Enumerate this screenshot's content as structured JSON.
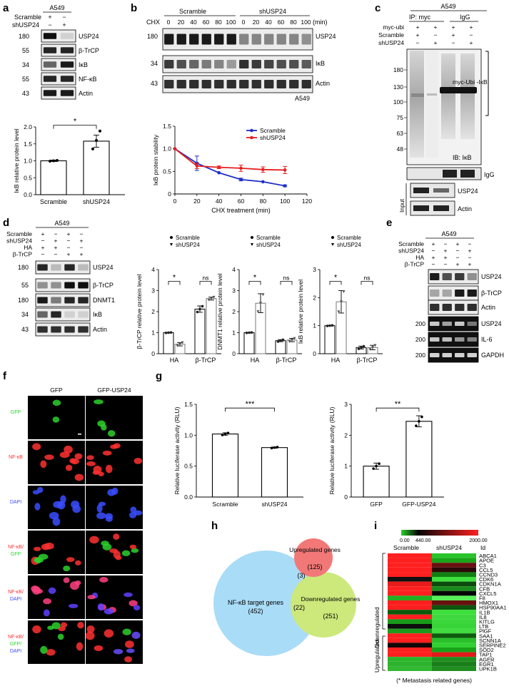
{
  "panel_letters": {
    "a": "a",
    "b": "b",
    "c": "c",
    "d": "d",
    "e": "e",
    "f": "f",
    "g": "g",
    "h": "h",
    "i": "i"
  },
  "a": {
    "cell_line": "A549",
    "lanes": [
      "Scramble",
      "shUSP24"
    ],
    "lane_marks": {
      "Scramble": [
        "+",
        "−"
      ],
      "shUSP24": [
        "−",
        "+"
      ]
    },
    "bands": [
      {
        "mw": "180",
        "label": "USP24"
      },
      {
        "mw": "55",
        "label": "β-TrCP"
      },
      {
        "mw": "34",
        "label": "IκB"
      },
      {
        "mw": "55",
        "label": "NF-κB"
      },
      {
        "mw": "43",
        "label": "Actin"
      }
    ],
    "star": "*"
  },
  "b": {
    "groups": [
      "Scramble",
      "shUSP24"
    ],
    "cond_label": "CHX",
    "unit": "(min)",
    "timepoints": [
      "0",
      "20",
      "40",
      "60",
      "80",
      "100",
      "0",
      "20",
      "40",
      "60",
      "80",
      "100"
    ],
    "bands": [
      {
        "mw": "180",
        "label": "USP24"
      },
      {
        "mw": "34",
        "label": "IκB"
      },
      {
        "mw": "43",
        "label": "Actin"
      }
    ],
    "cell_line": "A549"
  },
  "c": {
    "cell_line": "A549",
    "ip_myc": "IP: myc",
    "igg": "IgG",
    "rows": [
      {
        "label": "myc-ubi",
        "marks": [
          "+",
          "+",
          "+",
          "+"
        ]
      },
      {
        "label": "Scramble",
        "marks": [
          "+",
          "−",
          "+",
          "−"
        ]
      },
      {
        "label": "shUSP24",
        "marks": [
          "−",
          "+",
          "−",
          "+"
        ]
      }
    ],
    "mw": [
      "180",
      "130",
      "100",
      "75",
      "63",
      "48"
    ],
    "smear_label": "myc-Ubi -IκB",
    "ib": "IB: IκB",
    "igg_band": "IgG",
    "input": "Input",
    "input_bands": [
      "USP24",
      "Actin"
    ]
  },
  "d": {
    "cell_line": "A549",
    "rows": [
      {
        "label": "Scramble",
        "marks": [
          "+",
          "−",
          "+",
          "−"
        ]
      },
      {
        "label": "shUSP24",
        "marks": [
          "−",
          "+",
          "−",
          "+"
        ]
      },
      {
        "label": "HA",
        "marks": [
          "+",
          "+",
          "−",
          "−"
        ]
      },
      {
        "label": "β-TrCP",
        "marks": [
          "−",
          "−",
          "+",
          "+"
        ]
      }
    ],
    "bands": [
      {
        "mw": "180",
        "label": "USP24"
      },
      {
        "mw": "55",
        "label": "β-TrCP"
      },
      {
        "mw": "180",
        "label": "DNMT1"
      },
      {
        "mw": "34",
        "label": "IκB"
      },
      {
        "mw": "43",
        "label": "Actin"
      }
    ],
    "legend": [
      "Scramble",
      "shUSP24"
    ],
    "ns": "ns",
    "star": "*"
  },
  "e": {
    "cell_line": "A549",
    "rows": [
      {
        "label": "Scramble",
        "marks": [
          "+",
          "−",
          "+",
          "−"
        ]
      },
      {
        "label": "shUSP24",
        "marks": [
          "−",
          "+",
          "−",
          "+"
        ]
      },
      {
        "label": "HA",
        "marks": [
          "+",
          "+",
          "−",
          "−"
        ]
      },
      {
        "label": "β-TrCP",
        "marks": [
          "−",
          "−",
          "+",
          "+"
        ]
      }
    ],
    "bands": [
      "USP24",
      "β-TrCP",
      "Actin",
      "USP24",
      "IL-6",
      "GAPDH"
    ],
    "mw": [
      "200",
      "200",
      "200"
    ]
  },
  "f": {
    "cols": [
      "GFP",
      "GFP-USP24"
    ],
    "rows": [
      {
        "label": [
          "GFP"
        ],
        "colors": [
          "#2bd12b"
        ]
      },
      {
        "label": [
          "NF-κB"
        ],
        "colors": [
          "#ff3030"
        ]
      },
      {
        "label": [
          "DAPI"
        ],
        "colors": [
          "#3a4dff"
        ]
      },
      {
        "label": [
          "NF-κB/",
          "GFP"
        ],
        "colors": [
          "#ff3030",
          "#2bd12b"
        ]
      },
      {
        "label": [
          "NF-κB/",
          "DAPI"
        ],
        "colors": [
          "#ff3030",
          "#3a4dff"
        ]
      },
      {
        "label": [
          "NF-κB/",
          "GFP/",
          "DAPI"
        ],
        "colors": [
          "#ff3030",
          "#2bd12b",
          "#3a4dff"
        ]
      }
    ]
  },
  "g": {
    "stars_left": "***",
    "stars_right": "**"
  },
  "h": {
    "sets": [
      {
        "label": "NF-κB target genes",
        "count": "(452)"
      },
      {
        "label": "Upregulated genes",
        "count": "(125)"
      },
      {
        "label": "Downregulated genes",
        "count": "(251)"
      }
    ],
    "overlap_up": "(3)",
    "overlap_down": "(22)"
  },
  "i": {
    "scale_min": "0.00",
    "scale_mid": "440.00",
    "scale_max": "2000.00",
    "cols": [
      "Scramble",
      "shUSP24"
    ],
    "id_label": "Id",
    "group_down": "Downregulated",
    "group_up": "Upregulated",
    "footnote": "(* Metastasis related genes)",
    "genes": [
      "ABCA1",
      "APOE",
      "C3",
      "CCL5",
      "CCND3",
      "CDK6",
      "CDKN1A",
      "CFB",
      "CXCL5",
      "F8",
      "HMOX1",
      "HSP90AA1",
      "IL1B",
      "IL8",
      "KITLG",
      "LTB",
      "PlGF",
      "SAA1",
      "SCNN1A",
      "SERPINE2",
      "SOD2",
      "TAP1",
      "AGER",
      "EGR1",
      "UPK1B"
    ],
    "cells": [
      [
        "#ff2020",
        "#2bc42b"
      ],
      [
        "#ff1f1f",
        "#19a419"
      ],
      [
        "#ff1f1f",
        "#6a0f0f"
      ],
      [
        "#ff1f1f",
        "#2a0808"
      ],
      [
        "#ff2020",
        "#117f11"
      ],
      [
        "#101010",
        "#3fe03f"
      ],
      [
        "#e81a1a",
        "#0d4a0d"
      ],
      [
        "#ff2020",
        "#1a8a1a"
      ],
      [
        "#ff1f1f",
        "#070707"
      ],
      [
        "#22b022",
        "#59f059"
      ],
      [
        "#ff1f1f",
        "#6a1010"
      ],
      [
        "#ff1f1f",
        "#0d560d"
      ],
      [
        "#0b5a0b",
        "#3be03b"
      ],
      [
        "#ff1f1f",
        "#3ed83e"
      ],
      [
        "#1a9a1a",
        "#3ad63a"
      ],
      [
        "#0e0e0e",
        "#37d437"
      ],
      [
        "#1d9a1d",
        "#40dc40"
      ],
      [
        "#ff1f1f",
        "#0d5c0d"
      ],
      [
        "#ff1f1f",
        "#2ac02a"
      ],
      [
        "#120707",
        "#33d033"
      ],
      [
        "#ff1f1f",
        "#18a218"
      ],
      [
        "#ff1f1f",
        "#e01b1b"
      ],
      [
        "#2ab62a",
        "#1e8e1e"
      ],
      [
        "#2db32d",
        "#1a7f1a"
      ],
      [
        "#32b832",
        "#218e21"
      ]
    ]
  },
  "chart_data": [
    {
      "type": "bar",
      "panel": "a",
      "categories": [
        "Scramble",
        "shUSP24"
      ],
      "values": [
        1.0,
        1.58
      ],
      "errors": [
        0.02,
        0.18
      ],
      "points": [
        [
          0.99,
          1.0,
          1.01
        ],
        [
          1.35,
          1.6,
          1.88
        ]
      ],
      "ylabel": "IκB relative protein level",
      "ylim": [
        0,
        2.0
      ],
      "yticks": [
        "0.0",
        "0.5",
        "1.0",
        "1.5",
        "2.0"
      ]
    },
    {
      "type": "line",
      "panel": "b",
      "x": [
        0,
        20,
        40,
        60,
        80,
        100
      ],
      "series": [
        {
          "name": "Scramble",
          "color": "#1f2fc8",
          "values": [
            1.0,
            0.68,
            0.47,
            0.32,
            0.27,
            0.18
          ],
          "errors": [
            0,
            0.16,
            0,
            0.03,
            0,
            0.02
          ]
        },
        {
          "name": "shUSP24",
          "color": "#e62020",
          "values": [
            1.0,
            0.62,
            0.59,
            0.57,
            0.54,
            0.53
          ],
          "errors": [
            0,
            0.06,
            0.03,
            0.07,
            0.06,
            0.08
          ]
        }
      ],
      "xlabel": "CHX treatment (min)",
      "ylabel": "IκB protein stability",
      "xlim": [
        0,
        120
      ],
      "ylim": [
        0,
        1.5
      ],
      "xticks": [
        "0",
        "20",
        "40",
        "60",
        "80",
        "100",
        "120"
      ],
      "yticks": [
        "0",
        "0.5",
        "1.0",
        "1.5"
      ]
    },
    {
      "type": "bar",
      "panel": "d1",
      "categories": [
        "HA",
        "β-TrCP"
      ],
      "series": [
        {
          "name": "Scramble",
          "values": [
            1.0,
            2.12
          ],
          "errors": [
            0.01,
            0.15
          ]
        },
        {
          "name": "shUSP24",
          "values": [
            0.45,
            2.62
          ],
          "errors": [
            0.08,
            0.07
          ]
        }
      ],
      "ylabel": "β-TrCP relative protein level",
      "ylim": [
        0,
        4
      ],
      "yticks": [
        "0",
        "1",
        "2",
        "3",
        "4"
      ]
    },
    {
      "type": "bar",
      "panel": "d2",
      "categories": [
        "HA",
        "β-TrCP"
      ],
      "series": [
        {
          "name": "Scramble",
          "values": [
            1.0,
            0.62
          ],
          "errors": [
            0.01,
            0.05
          ]
        },
        {
          "name": "shUSP24",
          "values": [
            2.4,
            0.65
          ],
          "errors": [
            0.45,
            0.08
          ]
        }
      ],
      "ylabel": "DNMT1 relative protein level",
      "ylim": [
        0,
        4
      ],
      "yticks": [
        "0",
        "1",
        "2",
        "3",
        "4"
      ]
    },
    {
      "type": "bar",
      "panel": "d3",
      "categories": [
        "HA",
        "β-TrCP"
      ],
      "series": [
        {
          "name": "Scramble",
          "values": [
            1.0,
            0.22
          ],
          "errors": [
            0.01,
            0.05
          ]
        },
        {
          "name": "shUSP24",
          "values": [
            1.85,
            0.22
          ],
          "errors": [
            0.4,
            0.08
          ]
        }
      ],
      "ylabel": "IκB relative protein level",
      "ylim": [
        0,
        3
      ],
      "yticks": [
        "0",
        "1",
        "2",
        "3"
      ]
    },
    {
      "type": "bar",
      "panel": "g1",
      "categories": [
        "Scramble",
        "shUSP24"
      ],
      "values": [
        1.02,
        0.8
      ],
      "errors": [
        0.02,
        0.01
      ],
      "ylabel": "Relative luciferase activity (RLU)",
      "ylim": [
        0,
        1.5
      ],
      "yticks": [
        "0.0",
        "0.5",
        "1.0",
        "1.5"
      ]
    },
    {
      "type": "bar",
      "panel": "g2",
      "categories": [
        "GFP",
        "GFP-USP24"
      ],
      "values": [
        1.0,
        2.45
      ],
      "errors": [
        0.1,
        0.18
      ],
      "ylabel": "Relative luciferase activity (RLU)",
      "ylim": [
        0,
        3
      ],
      "yticks": [
        "0",
        "1",
        "2",
        "3"
      ]
    }
  ]
}
